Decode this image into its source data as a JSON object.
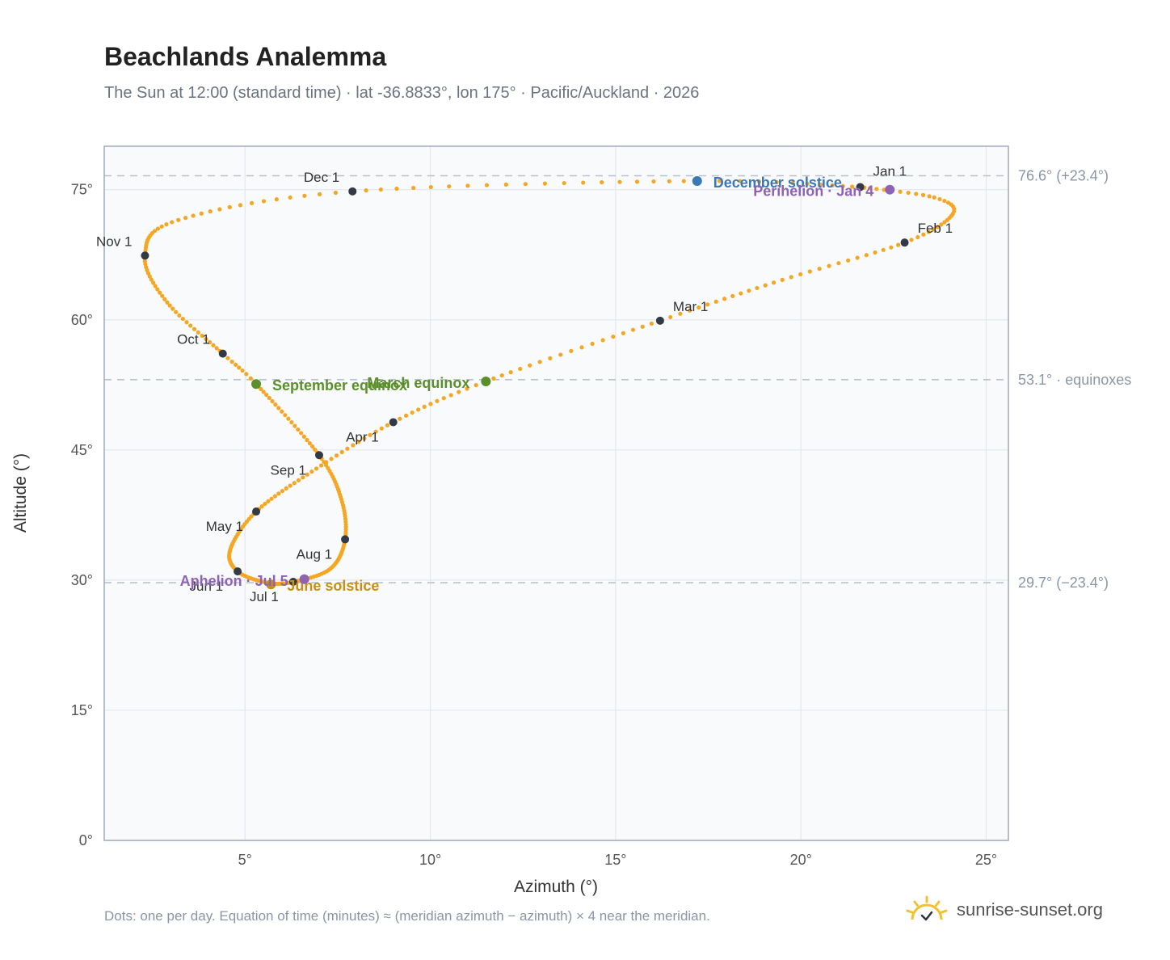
{
  "header": {
    "title": "Beachlands Analemma",
    "subtitle": "The Sun at 12:00 (standard time) · lat -36.8833°, lon 175° · Pacific/Auckland · 2026"
  },
  "footer": {
    "note": "Dots: one per day. Equation of time (minutes) ≈ (meridian azimuth − azimuth) × 4 near the meridian.",
    "brand": "sunrise-sunset.org",
    "brand_icon": "sun-icon"
  },
  "colors": {
    "path": "#f5a623",
    "month_dot": "#333a45",
    "equinox": "#5a8f29",
    "december_solstice": "#3b78b8",
    "june_solstice": "#c8900e",
    "apsis": "#8e63b5",
    "grid": "#e3e8ee",
    "plot_bg": "#f8fafc",
    "frame": "#a0aab8",
    "reference_line": "#b8c2cf"
  },
  "chart_data": {
    "type": "scatter",
    "xlabel": "Azimuth (°)",
    "ylabel": "Altitude (°)",
    "xlim": [
      1.2,
      25.6
    ],
    "ylim": [
      0,
      80
    ],
    "xticks": [
      5,
      10,
      15,
      20,
      25
    ],
    "yticks": [
      0,
      15,
      30,
      45,
      60,
      75
    ],
    "xtick_labels": [
      "5°",
      "10°",
      "15°",
      "20°",
      "25°"
    ],
    "ytick_labels": [
      "0°",
      "15°",
      "30°",
      "45°",
      "60°",
      "75°"
    ],
    "grid": true,
    "reference_lines": [
      {
        "value": 76.6,
        "label": "76.6° (+23.4°)"
      },
      {
        "value": 53.1,
        "label": "53.1° · equinoxes"
      },
      {
        "value": 29.7,
        "label": "29.7° (−23.4°)"
      }
    ],
    "path_anchors": [
      {
        "doy": 1,
        "x": 21.6,
        "y": 75.3
      },
      {
        "doy": 12,
        "x": 23.6,
        "y": 74.1
      },
      {
        "doy": 20,
        "x": 24.1,
        "y": 72.2
      },
      {
        "doy": 32,
        "x": 22.8,
        "y": 68.9
      },
      {
        "doy": 46,
        "x": 19.5,
        "y": 64.6
      },
      {
        "doy": 60,
        "x": 16.2,
        "y": 59.9
      },
      {
        "doy": 78,
        "x": 11.5,
        "y": 52.9
      },
      {
        "doy": 91,
        "x": 9.0,
        "y": 48.2
      },
      {
        "doy": 106,
        "x": 6.8,
        "y": 42.5
      },
      {
        "doy": 121,
        "x": 5.3,
        "y": 37.9
      },
      {
        "doy": 137,
        "x": 4.6,
        "y": 33.5
      },
      {
        "doy": 152,
        "x": 4.8,
        "y": 31.0
      },
      {
        "doy": 166,
        "x": 5.6,
        "y": 29.7
      },
      {
        "doy": 182,
        "x": 6.3,
        "y": 29.8
      },
      {
        "doy": 197,
        "x": 7.3,
        "y": 31.3
      },
      {
        "doy": 213,
        "x": 7.7,
        "y": 34.7
      },
      {
        "doy": 228,
        "x": 7.6,
        "y": 39.3
      },
      {
        "doy": 244,
        "x": 7.0,
        "y": 44.4
      },
      {
        "doy": 266,
        "x": 5.3,
        "y": 52.6
      },
      {
        "doy": 274,
        "x": 4.4,
        "y": 56.1
      },
      {
        "doy": 290,
        "x": 2.9,
        "y": 62.0
      },
      {
        "doy": 305,
        "x": 2.3,
        "y": 67.4
      },
      {
        "doy": 320,
        "x": 3.2,
        "y": 71.5
      },
      {
        "doy": 335,
        "x": 7.9,
        "y": 74.8
      },
      {
        "doy": 355,
        "x": 17.2,
        "y": 76.0
      },
      {
        "doy": 366,
        "x": 21.6,
        "y": 75.3
      }
    ],
    "month_markers": [
      {
        "label": "Jan 1",
        "x": 21.6,
        "y": 75.3
      },
      {
        "label": "Feb 1",
        "x": 22.8,
        "y": 68.9
      },
      {
        "label": "Mar 1",
        "x": 16.2,
        "y": 59.9
      },
      {
        "label": "Apr 1",
        "x": 9.0,
        "y": 48.2
      },
      {
        "label": "May 1",
        "x": 5.3,
        "y": 37.9
      },
      {
        "label": "Jun 1",
        "x": 4.8,
        "y": 31.0
      },
      {
        "label": "Jul 1",
        "x": 6.3,
        "y": 29.8
      },
      {
        "label": "Aug 1",
        "x": 7.7,
        "y": 34.7
      },
      {
        "label": "Sep 1",
        "x": 7.0,
        "y": 44.4
      },
      {
        "label": "Oct 1",
        "x": 4.4,
        "y": 56.1
      },
      {
        "label": "Nov 1",
        "x": 2.3,
        "y": 67.4
      },
      {
        "label": "Dec 1",
        "x": 7.9,
        "y": 74.8
      }
    ],
    "events": [
      {
        "label": "December solstice",
        "x": 17.2,
        "y": 76.0,
        "kind": "december_solstice"
      },
      {
        "label": "March equinox",
        "x": 11.5,
        "y": 52.9,
        "kind": "equinox"
      },
      {
        "label": "September equinox",
        "x": 5.3,
        "y": 52.6,
        "kind": "equinox"
      },
      {
        "label": "June solstice",
        "x": 5.7,
        "y": 29.5,
        "kind": "june_solstice"
      },
      {
        "label": "Perihelion · Jan 4",
        "x": 22.4,
        "y": 75.0,
        "kind": "apsis"
      },
      {
        "label": "Aphelion · Jul 5",
        "x": 6.6,
        "y": 30.1,
        "kind": "apsis"
      }
    ]
  }
}
